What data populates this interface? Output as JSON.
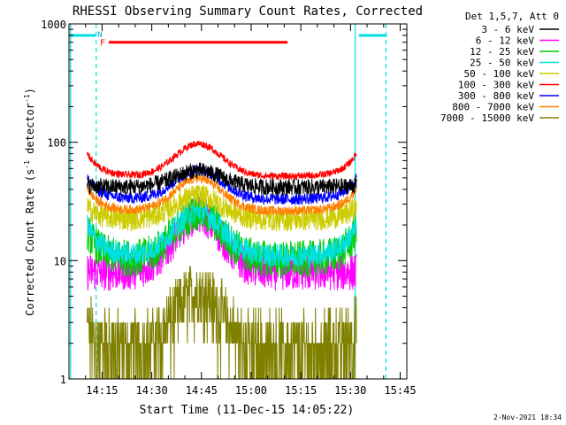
{
  "chart_data": {
    "type": "line",
    "title": "RHESSI Observing Summary Count Rates, Corrected",
    "xlabel": "Start Time (11-Dec-15 14:05:22)",
    "ylabel": "Corrected Count Rate (s",
    "ylabel_sup1": "-1",
    "ylabel_mid": " detector",
    "ylabel_sup2": "-1",
    "ylabel_end": ")",
    "y_scale": "log",
    "ylim": [
      1,
      1000
    ],
    "xlim_minutes": [
      0,
      102
    ],
    "x_ticks": [
      {
        "label": "14:15",
        "min": 10
      },
      {
        "label": "14:30",
        "min": 25
      },
      {
        "label": "14:45",
        "min": 40
      },
      {
        "label": "15:00",
        "min": 55
      },
      {
        "label": "15:15",
        "min": 70
      },
      {
        "label": "15:30",
        "min": 85
      },
      {
        "label": "15:45",
        "min": 100
      }
    ],
    "y_ticks": [
      {
        "label": "1",
        "value": 1
      },
      {
        "label": "10",
        "value": 10
      },
      {
        "label": "100",
        "value": 100
      },
      {
        "label": "1000",
        "value": 1000
      }
    ],
    "legend_title": "Det 1,5,7, Att 0",
    "legend_location": "top-right",
    "footer_date": "2-Nov-2021 18:34",
    "series": [
      {
        "name": "3 - 6 keV",
        "color": "#000000",
        "level": 42,
        "amp": 0.28,
        "edge": 0.05,
        "noise": 0.07
      },
      {
        "name": "6 - 12 keV",
        "color": "#ff00ff",
        "level": 8,
        "amp": 0.95,
        "edge": 0.0,
        "noise": 0.16
      },
      {
        "name": "12 - 25 keV",
        "color": "#00cc00",
        "level": 11,
        "amp": 0.8,
        "edge": 0.7,
        "noise": 0.16
      },
      {
        "name": "25 - 50 keV",
        "color": "#00e0e0",
        "level": 12,
        "amp": 0.75,
        "edge": 0.75,
        "noise": 0.1
      },
      {
        "name": "50 - 100 keV",
        "color": "#cccc00",
        "level": 23,
        "amp": 0.4,
        "edge": 0.3,
        "noise": 0.1
      },
      {
        "name": "100 - 300 keV",
        "color": "#ff0000",
        "level": 55,
        "amp": 0.55,
        "edge": 0.55,
        "noise": 0.03
      },
      {
        "name": "300 - 800 keV",
        "color": "#0000ff",
        "level": 35,
        "amp": 0.5,
        "edge": 0.5,
        "noise": 0.05
      },
      {
        "name": "800 - 7000 keV",
        "color": "#ff8000",
        "level": 28,
        "amp": 0.55,
        "edge": 0.55,
        "noise": 0.04
      },
      {
        "name": "7000 - 15000 keV",
        "color": "#808000",
        "level": 1.8,
        "amp": 1.0,
        "edge": 0.5,
        "noise": 0.25
      }
    ],
    "flare_bar": {
      "label": "F",
      "start_min": 12,
      "end_min": 66,
      "value": 700,
      "color": "#ff0000"
    },
    "night_bars": [
      {
        "start_min": 0,
        "end_min": 8,
        "value": 800,
        "color": "#00e0e0"
      },
      {
        "start_min": 87.5,
        "end_min": 96,
        "value": 800,
        "color": "#00e0e0"
      }
    ],
    "saa_label": "N",
    "event_lines": [
      {
        "min": 0.5,
        "style": "solid",
        "color": "#00e0e0"
      },
      {
        "min": 8.2,
        "style": "dashed",
        "color": "#00e0e0"
      },
      {
        "min": 86.4,
        "style": "solid",
        "color": "#00e0e0"
      },
      {
        "min": 95.7,
        "style": "dashed",
        "color": "#00e0e0"
      }
    ]
  }
}
